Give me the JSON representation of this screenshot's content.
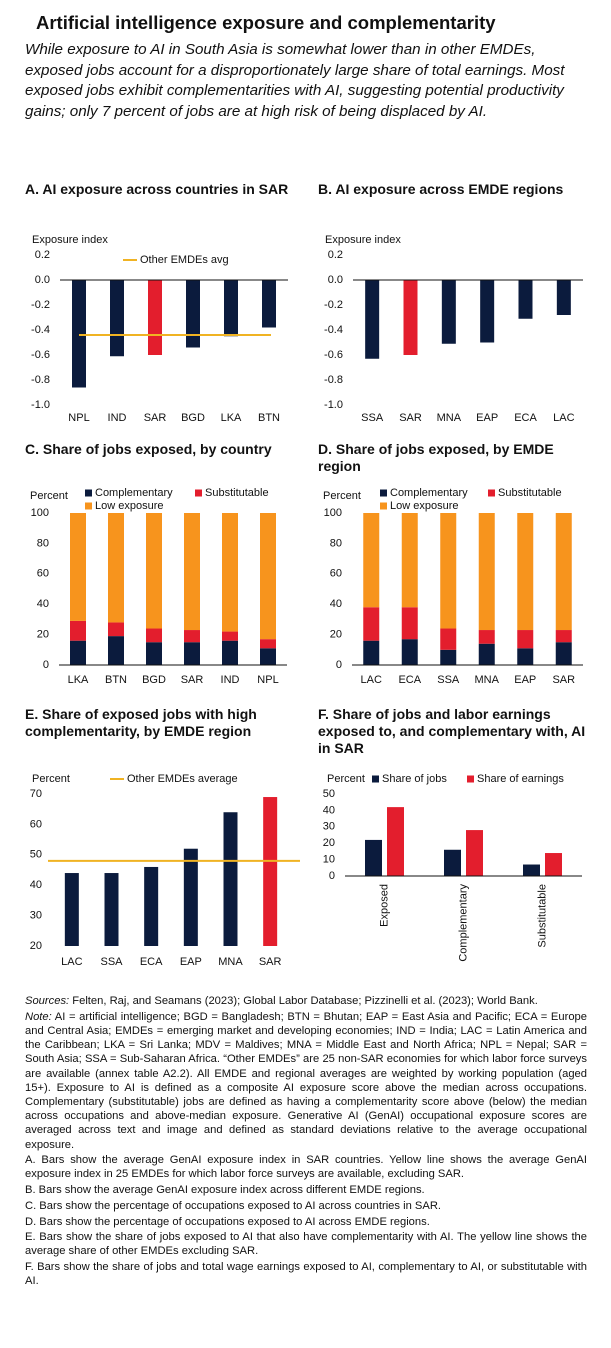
{
  "title": "Artificial intelligence exposure and complementarity",
  "subtitle": "While exposure to AI in South Asia is somewhat lower than in other EMDEs, exposed jobs account for a disproportionately large share of total earnings. Most exposed jobs exhibit complementarities with AI, suggesting potential productivity gains; only 7 percent of jobs are at high risk of being displaced by AI.",
  "chart_data": [
    {
      "type": "bar",
      "title": "A. AI exposure across countries in SAR",
      "ylabel": "Exposure index",
      "categories": [
        "NPL",
        "IND",
        "SAR",
        "BGD",
        "LKA",
        "BTN"
      ],
      "values": [
        -0.86,
        -0.61,
        -0.6,
        -0.54,
        -0.45,
        -0.38
      ],
      "colors": [
        "#0b1b3d",
        "#0b1b3d",
        "#e31e2d",
        "#0b1b3d",
        "#0b1b3d",
        "#0b1b3d"
      ],
      "reference_line": {
        "name": "Other EMDEs avg",
        "value": -0.44,
        "color": "#f0b323"
      },
      "ylim": [
        -1.0,
        0.2
      ],
      "yticks": [
        0.2,
        {
          "value": 0,
          "label": "0.0"
        },
        -0.2,
        -0.4,
        -0.6,
        -0.8,
        {
          "value": -1,
          "label": "-1.0"
        }
      ]
    },
    {
      "type": "bar",
      "title": "B. AI exposure across EMDE regions",
      "ylabel": "Exposure index",
      "categories": [
        "SSA",
        "SAR",
        "MNA",
        "EAP",
        "ECA",
        "LAC"
      ],
      "values": [
        -0.63,
        -0.6,
        -0.51,
        -0.5,
        -0.31,
        -0.28
      ],
      "colors": [
        "#0b1b3d",
        "#e31e2d",
        "#0b1b3d",
        "#0b1b3d",
        "#0b1b3d",
        "#0b1b3d"
      ],
      "ylim": [
        -1.0,
        0.2
      ],
      "yticks": [
        0.2,
        {
          "value": 0,
          "label": "0.0"
        },
        -0.2,
        -0.4,
        -0.6,
        -0.8,
        {
          "value": -1,
          "label": "-1.0"
        }
      ]
    },
    {
      "type": "stacked_bar",
      "title": "C. Share of jobs exposed, by country",
      "ylabel": "Percent",
      "categories": [
        "LKA",
        "BTN",
        "BGD",
        "SAR",
        "IND",
        "NPL"
      ],
      "series": [
        {
          "name": "Complementary",
          "color": "#0b1b3d",
          "values": [
            16,
            19,
            15,
            15,
            16,
            11
          ]
        },
        {
          "name": "Substitutable",
          "color": "#e31e2d",
          "values": [
            13,
            9,
            9,
            8,
            6,
            6
          ]
        },
        {
          "name": "Low exposure",
          "color": "#f7941d",
          "values": [
            71,
            72,
            76,
            77,
            78,
            83
          ]
        }
      ],
      "ylim": [
        0,
        100
      ],
      "yticks": [
        0,
        20,
        40,
        60,
        80,
        100
      ]
    },
    {
      "type": "stacked_bar",
      "title": "D. Share of jobs exposed, by EMDE region",
      "ylabel": "Percent",
      "categories": [
        "LAC",
        "ECA",
        "SSA",
        "MNA",
        "EAP",
        "SAR"
      ],
      "series": [
        {
          "name": "Complementary",
          "color": "#0b1b3d",
          "values": [
            16,
            17,
            10,
            14,
            11,
            15
          ]
        },
        {
          "name": "Substitutable",
          "color": "#e31e2d",
          "values": [
            22,
            21,
            14,
            9,
            12,
            8
          ]
        },
        {
          "name": "Low exposure",
          "color": "#f7941d",
          "values": [
            62,
            62,
            76,
            77,
            77,
            77
          ]
        }
      ],
      "ylim": [
        0,
        100
      ],
      "yticks": [
        0,
        20,
        40,
        60,
        80,
        100
      ]
    },
    {
      "type": "bar",
      "title": "E. Share of exposed jobs with high complementarity, by EMDE region",
      "ylabel": "Percent",
      "categories": [
        "LAC",
        "SSA",
        "ECA",
        "EAP",
        "MNA",
        "SAR"
      ],
      "values": [
        44,
        44,
        46,
        52,
        64,
        69
      ],
      "colors": [
        "#0b1b3d",
        "#0b1b3d",
        "#0b1b3d",
        "#0b1b3d",
        "#0b1b3d",
        "#e31e2d"
      ],
      "reference_line": {
        "name": "Other EMDEs average",
        "value": 48,
        "color": "#f0b323"
      },
      "ylim": [
        20,
        70
      ],
      "yticks": [
        20,
        30,
        40,
        50,
        60,
        70
      ]
    },
    {
      "type": "grouped_bar",
      "title": "F. Share of jobs and labor earnings exposed to, and complementary with, AI in SAR",
      "ylabel": "Percent",
      "categories": [
        "Exposed",
        "Complementary",
        "Substitutable"
      ],
      "series": [
        {
          "name": "Share of jobs",
          "color": "#0b1b3d",
          "values": [
            22,
            16,
            7
          ]
        },
        {
          "name": "Share of earnings",
          "color": "#e31e2d",
          "values": [
            42,
            28,
            14
          ]
        }
      ],
      "ylim": [
        0,
        50
      ],
      "yticks": [
        0,
        10,
        20,
        30,
        40,
        50
      ]
    }
  ],
  "notes": {
    "sources_label": "Sources:",
    "sources": "Felten, Raj, and Seamans (2023); Global Labor Database; Pizzinelli et al. (2023); World Bank.",
    "note_label": "Note:",
    "note": "AI = artificial intelligence;  BGD = Bangladesh; BTN = Bhutan; EAP = East Asia and Pacific; ECA = Europe and Central Asia; EMDEs = emerging market and developing economies; IND = India; LAC = Latin America and the Caribbean; LKA = Sri Lanka; MDV = Maldives; MNA = Middle East and North Africa; NPL = Nepal; SAR = South Asia; SSA = Sub-Saharan Africa. “Other EMDEs” are 25 non-SAR economies for which labor force surveys are available (annex table A2.2). All EMDE and regional averages are weighted by working population (aged 15+). Exposure to AI is defined as a composite AI exposure score above the median across occupations. Complementary (substitutable) jobs are defined as having a complementarity score above (below) the median across occupations and above-median exposure. Generative AI (GenAI) occupational exposure scores are averaged across text and image and defined as standard deviations relative to the average occupational exposure.",
    "panels": [
      "A. Bars show the average GenAI exposure index in SAR countries. Yellow line shows the average GenAI exposure index in 25 EMDEs for which labor force surveys are available, excluding SAR.",
      "B. Bars show the average GenAI exposure index across different EMDE regions.",
      "C. Bars show the percentage of occupations exposed to AI across countries in SAR.",
      "D. Bars show the percentage of occupations exposed to AI across EMDE regions.",
      "E. Bars show the share of jobs exposed to AI that also have complementarity with AI. The yellow line shows the average share of other EMDEs excluding SAR.",
      "F. Bars show the share of jobs and total wage earnings exposed to AI, complementary to AI, or substitutable with AI."
    ]
  }
}
